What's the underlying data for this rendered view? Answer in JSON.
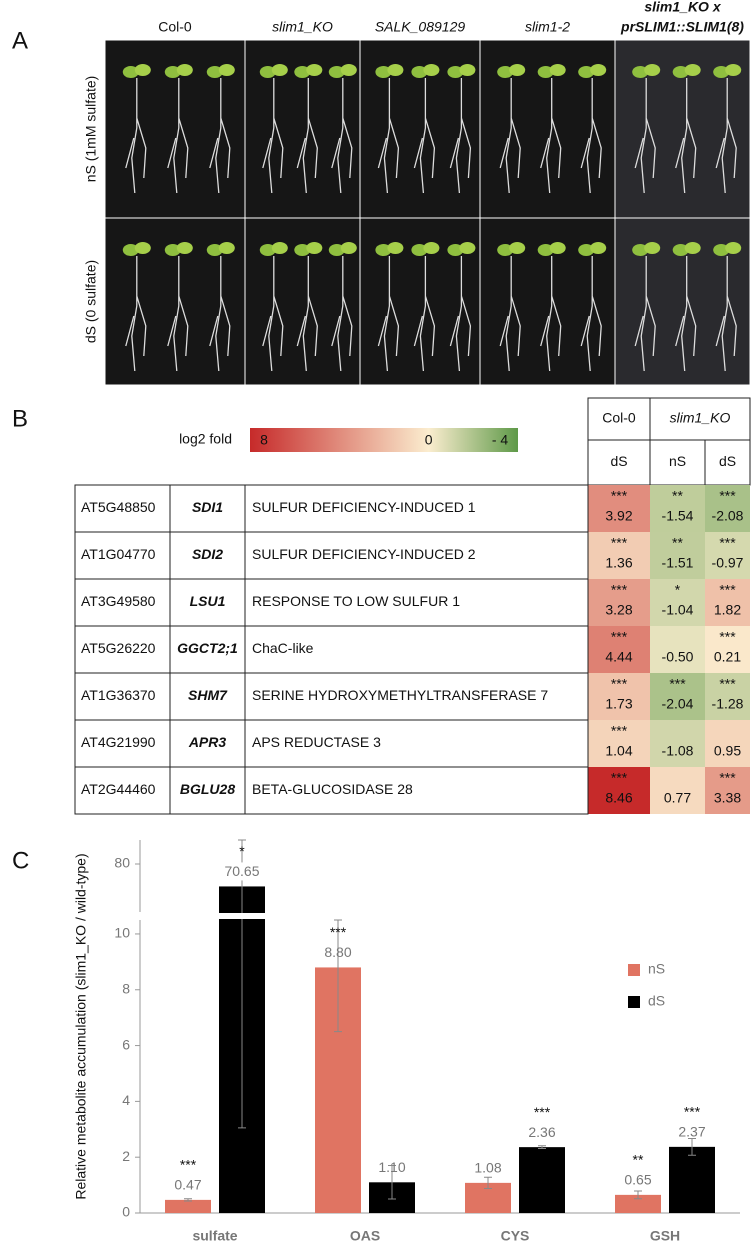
{
  "panel_a": {
    "label": "A",
    "genotypes": [
      "Col-0",
      "slim1_KO",
      "SALK_089129",
      "slim1-2"
    ],
    "complemented_line": [
      "slim1_KO x",
      "prSLIM1::SLIM1(8)"
    ],
    "conditions": [
      "nS (1mM sulfate)",
      "dS (0 sulfate)"
    ]
  },
  "panel_b": {
    "label": "B",
    "legend_title": "log2 fold",
    "legend_ticks": [
      8,
      0,
      {
        "value": -4,
        "label": "- 4"
      }
    ],
    "colors": {
      "high": "#c62a2a",
      "mid": "#fbedcf",
      "low": "#5e9948"
    },
    "groups": [
      "Col-0",
      "slim1_KO"
    ],
    "conditions": [
      "dS",
      "nS",
      "dS"
    ],
    "rows": [
      {
        "id": "AT5G48850",
        "symbol": "SDI1",
        "description": "SULFUR DEFICIENCY-INDUCED 1",
        "values": [
          3.92,
          -1.54,
          -2.08
        ],
        "value_labels": [
          "3.92",
          "-1.54",
          "-2.08"
        ],
        "stars": [
          "***",
          "**",
          "***"
        ]
      },
      {
        "id": "AT1G04770",
        "symbol": "SDI2",
        "description": "SULFUR DEFICIENCY-INDUCED 2",
        "values": [
          1.36,
          -1.51,
          -0.97
        ],
        "value_labels": [
          "1.36",
          "-1.51",
          "-0.97"
        ],
        "stars": [
          "***",
          "**",
          "***"
        ]
      },
      {
        "id": "AT3G49580",
        "symbol": "LSU1",
        "description": "RESPONSE TO LOW SULFUR 1",
        "values": [
          3.28,
          -1.04,
          1.82
        ],
        "value_labels": [
          "3.28",
          "-1.04",
          "1.82"
        ],
        "stars": [
          "***",
          "*",
          "***"
        ]
      },
      {
        "id": "AT5G26220",
        "symbol": "GGCT2;1",
        "description": "ChaC-like",
        "values": [
          4.44,
          -0.5,
          0.21
        ],
        "value_labels": [
          "4.44",
          "-0.50",
          "0.21"
        ],
        "stars": [
          "***",
          null,
          "***"
        ]
      },
      {
        "id": "AT1G36370",
        "symbol": "SHM7",
        "description": "SERINE HYDROXYMETHYLTRANSFERASE 7",
        "values": [
          1.73,
          -2.04,
          -1.28
        ],
        "value_labels": [
          "1.73",
          "-2.04",
          "-1.28"
        ],
        "stars": [
          "***",
          "***",
          "***"
        ]
      },
      {
        "id": "AT4G21990",
        "symbol": "APR3",
        "description": "APS REDUCTASE 3",
        "values": [
          1.04,
          -1.08,
          0.95
        ],
        "value_labels": [
          "1.04",
          "-1.08",
          "0.95"
        ],
        "stars": [
          "***",
          null,
          null
        ]
      },
      {
        "id": "AT2G44460",
        "symbol": "BGLU28",
        "description": "BETA-GLUCOSIDASE 28",
        "values": [
          8.46,
          0.77,
          3.38
        ],
        "value_labels": [
          "8.46",
          "0.77",
          "3.38"
        ],
        "stars": [
          "***",
          null,
          "***"
        ]
      }
    ]
  },
  "panel_c": {
    "label": "C"
  },
  "chart_data": {
    "type": "bar",
    "ylabel": "Relative metabolite accumulation (slim1_KO / wild-type)",
    "categories": [
      "sulfate",
      "OAS",
      "CYS",
      "GSH"
    ],
    "series": [
      {
        "name": "nS",
        "color": "#e07462",
        "values": [
          0.47,
          8.8,
          1.08,
          0.65
        ],
        "value_labels": [
          "0.47",
          "8.80",
          "1.08",
          "0.65"
        ],
        "errors": [
          0.04,
          2.3,
          0.2,
          0.14
        ],
        "significance": [
          "***",
          "***",
          null,
          "**"
        ]
      },
      {
        "name": "dS",
        "color": "#000000",
        "values": [
          70.65,
          1.1,
          2.36,
          2.37
        ],
        "value_labels": [
          "70.65",
          "1.10",
          "2.36",
          "2.37"
        ],
        "errors": [
          67.6,
          0.6,
          0.05,
          0.3
        ],
        "significance": [
          "*",
          null,
          "***",
          "***"
        ]
      }
    ],
    "ylim": [
      0,
      10.5
    ],
    "yticks": [
      0,
      2,
      4,
      6,
      8,
      10
    ],
    "upper_ylim": [
      60,
      90
    ],
    "upper_yticks": [
      80
    ],
    "legend": "upper right"
  }
}
